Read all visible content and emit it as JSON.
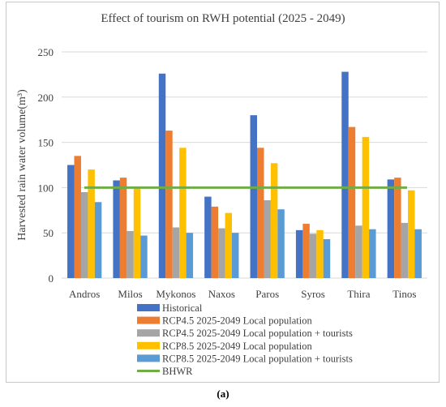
{
  "caption": "(a)",
  "chart_data": {
    "type": "bar",
    "title": "Effect of tourism on RWH potential (2025 - 2049)",
    "ylabel": "Harvested rain water volume(m³)",
    "xlabel": "",
    "ylim": [
      0,
      250
    ],
    "yticks": [
      0,
      50,
      100,
      150,
      200,
      250
    ],
    "grid": true,
    "legend": "bottom",
    "categories": [
      "Andros",
      "Milos",
      "Mykonos",
      "Naxos",
      "Paros",
      "Syros",
      "Thira",
      "Tinos"
    ],
    "series": [
      {
        "name": "Historical",
        "color": "#4472C4",
        "values": [
          125,
          108,
          226,
          90,
          180,
          53,
          228,
          109
        ]
      },
      {
        "name": "RCP4.5 2025-2049 Local population",
        "color": "#ED7D31",
        "values": [
          135,
          111,
          163,
          79,
          144,
          60,
          167,
          111
        ]
      },
      {
        "name": "RCP4.5 2025-2049 Local population + tourists",
        "color": "#A5A5A5",
        "values": [
          95,
          52,
          56,
          55,
          86,
          49,
          58,
          61
        ]
      },
      {
        "name": "RCP8.5 2025-2049 Local population",
        "color": "#FFC000",
        "values": [
          120,
          101,
          144,
          72,
          127,
          53,
          156,
          97
        ]
      },
      {
        "name": "RCP8.5 2025-2049 Local population + tourists",
        "color": "#5B9BD5",
        "values": [
          84,
          47,
          50,
          50,
          76,
          43,
          54,
          54
        ]
      }
    ],
    "reference_line": {
      "name": "BHWR",
      "color": "#70AD47",
      "value": 100
    }
  }
}
